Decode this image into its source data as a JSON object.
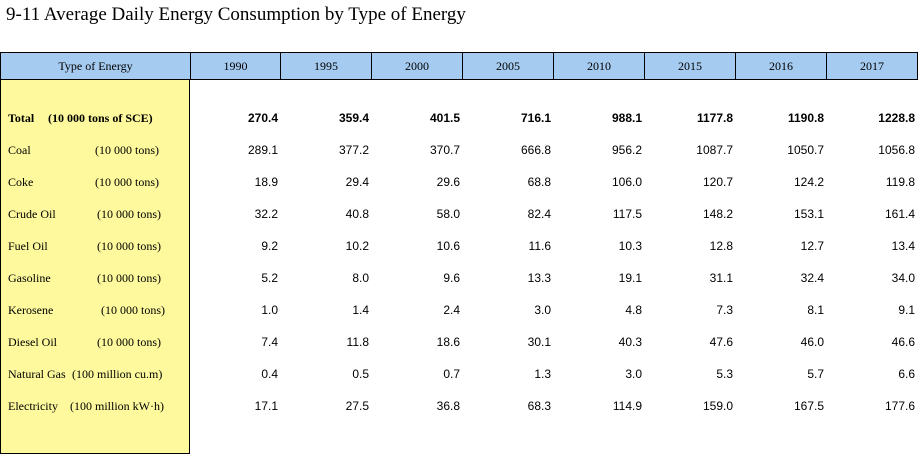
{
  "title": "9-11  Average Daily Energy Consumption by Type of Energy",
  "header": {
    "type_label": "Type of Energy",
    "years": [
      "1990",
      "1995",
      "2000",
      "2005",
      "2010",
      "2015",
      "2016",
      "2017"
    ]
  },
  "rows": [
    {
      "label": "Total",
      "unit": "(10 000 tons of SCE)",
      "values": [
        "270.4",
        "359.4",
        "401.5",
        "716.1",
        "988.1",
        "1177.8",
        "1190.8",
        "1228.8"
      ]
    },
    {
      "label": "Coal",
      "unit": "(10 000 tons)",
      "values": [
        "289.1",
        "377.2",
        "370.7",
        "666.8",
        "956.2",
        "1087.7",
        "1050.7",
        "1056.8"
      ]
    },
    {
      "label": "Coke",
      "unit": "(10 000 tons)",
      "values": [
        "18.9",
        "29.4",
        "29.6",
        "68.8",
        "106.0",
        "120.7",
        "124.2",
        "119.8"
      ]
    },
    {
      "label": "Crude Oil",
      "unit": "(10 000 tons)",
      "values": [
        "32.2",
        "40.8",
        "58.0",
        "82.4",
        "117.5",
        "148.2",
        "153.1",
        "161.4"
      ]
    },
    {
      "label": "Fuel Oil",
      "unit": "(10 000 tons)",
      "values": [
        "9.2",
        "10.2",
        "10.6",
        "11.6",
        "10.3",
        "12.8",
        "12.7",
        "13.4"
      ]
    },
    {
      "label": "Gasoline",
      "unit": "(10 000 tons)",
      "values": [
        "5.2",
        "8.0",
        "9.6",
        "13.3",
        "19.1",
        "31.1",
        "32.4",
        "34.0"
      ]
    },
    {
      "label": "Kerosene",
      "unit": "(10 000 tons)",
      "values": [
        "1.0",
        "1.4",
        "2.4",
        "3.0",
        "4.8",
        "7.3",
        "8.1",
        "9.1"
      ]
    },
    {
      "label": "Diesel Oil",
      "unit": "(10 000 tons)",
      "values": [
        "7.4",
        "11.8",
        "18.6",
        "30.1",
        "40.3",
        "47.6",
        "46.0",
        "46.6"
      ]
    },
    {
      "label": "Natural Gas",
      "unit": "(100 million cu.m)",
      "values": [
        "0.4",
        "0.5",
        "0.7",
        "1.3",
        "3.0",
        "5.3",
        "5.7",
        "6.6"
      ]
    },
    {
      "label": "Electricity",
      "unit": "(100 million kW·h)",
      "values": [
        "17.1",
        "27.5",
        "36.8",
        "68.3",
        "114.9",
        "159.0",
        "167.5",
        "177.6"
      ]
    }
  ]
}
